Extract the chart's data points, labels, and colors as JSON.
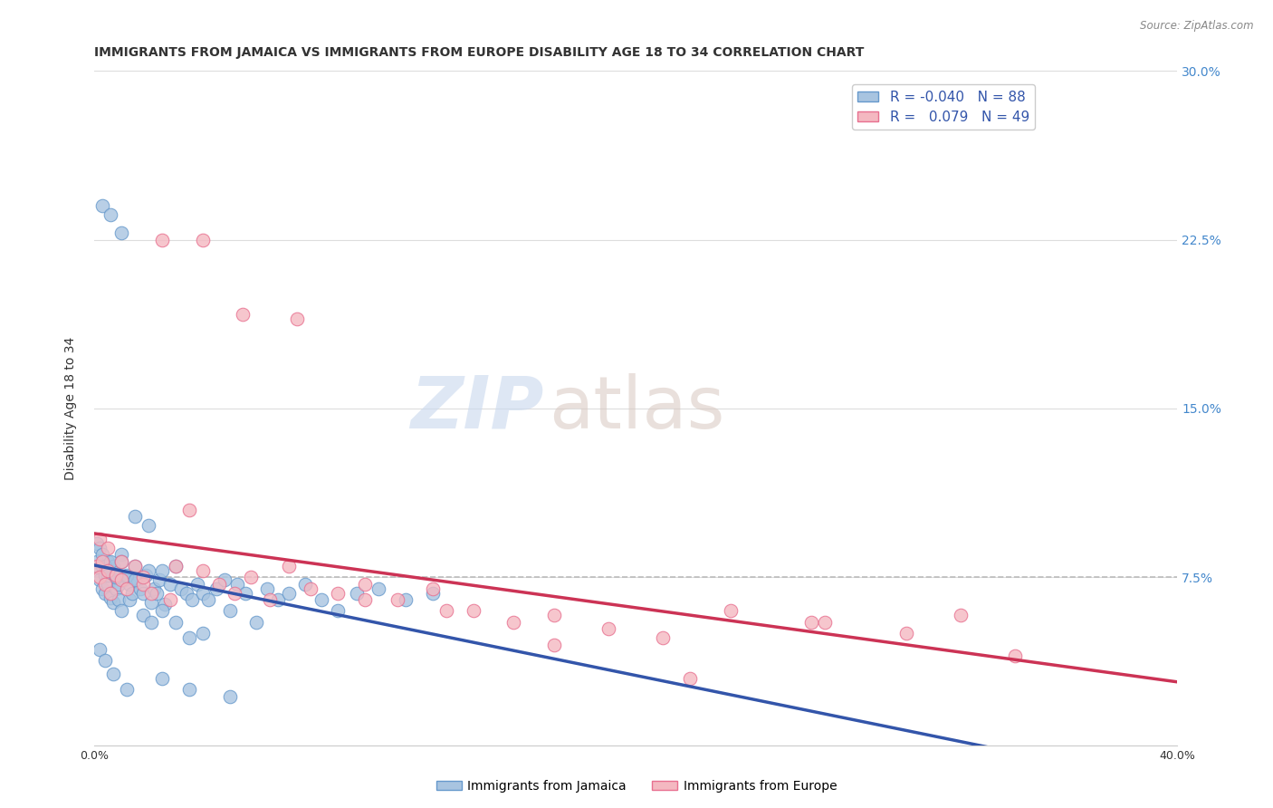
{
  "title": "IMMIGRANTS FROM JAMAICA VS IMMIGRANTS FROM EUROPE DISABILITY AGE 18 TO 34 CORRELATION CHART",
  "source": "Source: ZipAtlas.com",
  "ylabel": "Disability Age 18 to 34",
  "x_min": 0.0,
  "x_max": 0.4,
  "y_min": 0.0,
  "y_max": 0.3,
  "y_ticks": [
    0.0,
    0.075,
    0.15,
    0.225,
    0.3
  ],
  "y_tick_labels": [
    "",
    "7.5%",
    "15.0%",
    "22.5%",
    "30.0%"
  ],
  "x_ticks": [
    0.0,
    0.1,
    0.2,
    0.3,
    0.4
  ],
  "x_tick_labels": [
    "0.0%",
    "",
    "",
    "",
    "40.0%"
  ],
  "jamaica_color": "#a8c4e0",
  "europe_color": "#f4b8c1",
  "jamaica_edge": "#6699cc",
  "europe_edge": "#e87090",
  "trend_jamaica_color": "#3355aa",
  "trend_europe_color": "#cc3355",
  "dashed_line_color": "#bbbbbb",
  "dashed_line_y": 0.075,
  "legend_r_jamaica": "-0.040",
  "legend_n_jamaica": "88",
  "legend_r_europe": "0.079",
  "legend_n_europe": "49",
  "legend_label_jamaica": "Immigrants from Jamaica",
  "legend_label_europe": "Immigrants from Europe",
  "watermark_zip": "ZIP",
  "watermark_atlas": "atlas",
  "grid_color": "#dddddd",
  "background_color": "#ffffff",
  "title_fontsize": 10,
  "axis_label_fontsize": 10,
  "tick_fontsize": 9,
  "legend_fontsize": 11,
  "jamaica_x": [
    0.001,
    0.002,
    0.002,
    0.003,
    0.003,
    0.004,
    0.004,
    0.005,
    0.005,
    0.006,
    0.006,
    0.007,
    0.007,
    0.008,
    0.008,
    0.009,
    0.009,
    0.01,
    0.01,
    0.011,
    0.012,
    0.013,
    0.013,
    0.014,
    0.015,
    0.016,
    0.017,
    0.018,
    0.019,
    0.02,
    0.021,
    0.022,
    0.023,
    0.024,
    0.025,
    0.026,
    0.028,
    0.03,
    0.032,
    0.034,
    0.036,
    0.038,
    0.04,
    0.042,
    0.045,
    0.048,
    0.05,
    0.053,
    0.056,
    0.06,
    0.064,
    0.068,
    0.072,
    0.078,
    0.084,
    0.09,
    0.097,
    0.105,
    0.115,
    0.125,
    0.001,
    0.002,
    0.003,
    0.004,
    0.005,
    0.006,
    0.008,
    0.01,
    0.012,
    0.015,
    0.018,
    0.021,
    0.025,
    0.03,
    0.035,
    0.04,
    0.003,
    0.006,
    0.01,
    0.015,
    0.02,
    0.025,
    0.035,
    0.05,
    0.002,
    0.004,
    0.007,
    0.012
  ],
  "jamaica_y": [
    0.082,
    0.079,
    0.074,
    0.08,
    0.07,
    0.076,
    0.068,
    0.082,
    0.072,
    0.078,
    0.066,
    0.08,
    0.064,
    0.076,
    0.07,
    0.065,
    0.072,
    0.085,
    0.06,
    0.074,
    0.075,
    0.065,
    0.072,
    0.068,
    0.08,
    0.074,
    0.07,
    0.068,
    0.076,
    0.078,
    0.064,
    0.07,
    0.068,
    0.074,
    0.078,
    0.063,
    0.072,
    0.08,
    0.07,
    0.068,
    0.065,
    0.072,
    0.068,
    0.065,
    0.07,
    0.074,
    0.06,
    0.072,
    0.068,
    0.055,
    0.07,
    0.065,
    0.068,
    0.072,
    0.065,
    0.06,
    0.068,
    0.07,
    0.065,
    0.068,
    0.09,
    0.088,
    0.085,
    0.08,
    0.076,
    0.082,
    0.075,
    0.082,
    0.076,
    0.074,
    0.058,
    0.055,
    0.06,
    0.055,
    0.048,
    0.05,
    0.24,
    0.236,
    0.228,
    0.102,
    0.098,
    0.03,
    0.025,
    0.022,
    0.043,
    0.038,
    0.032,
    0.025
  ],
  "europe_x": [
    0.001,
    0.002,
    0.003,
    0.004,
    0.005,
    0.006,
    0.008,
    0.01,
    0.012,
    0.015,
    0.018,
    0.021,
    0.025,
    0.03,
    0.035,
    0.04,
    0.046,
    0.052,
    0.058,
    0.065,
    0.072,
    0.08,
    0.09,
    0.1,
    0.112,
    0.125,
    0.14,
    0.155,
    0.17,
    0.19,
    0.21,
    0.235,
    0.265,
    0.3,
    0.34,
    0.002,
    0.005,
    0.01,
    0.018,
    0.028,
    0.04,
    0.055,
    0.075,
    0.1,
    0.13,
    0.17,
    0.22,
    0.27,
    0.32
  ],
  "europe_y": [
    0.08,
    0.075,
    0.082,
    0.072,
    0.078,
    0.068,
    0.076,
    0.074,
    0.07,
    0.08,
    0.072,
    0.068,
    0.225,
    0.08,
    0.105,
    0.078,
    0.072,
    0.068,
    0.075,
    0.065,
    0.08,
    0.07,
    0.068,
    0.072,
    0.065,
    0.07,
    0.06,
    0.055,
    0.058,
    0.052,
    0.048,
    0.06,
    0.055,
    0.05,
    0.04,
    0.092,
    0.088,
    0.082,
    0.075,
    0.065,
    0.225,
    0.192,
    0.19,
    0.065,
    0.06,
    0.045,
    0.03,
    0.055,
    0.058
  ]
}
